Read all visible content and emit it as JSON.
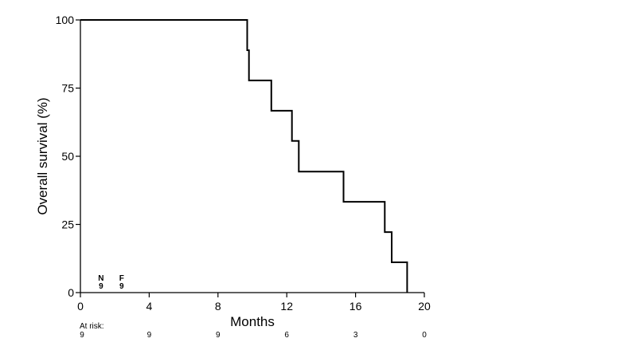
{
  "chart_data": {
    "type": "line",
    "xlabel": "Months",
    "ylabel": "Overall survival (%)",
    "xlim": [
      0,
      20
    ],
    "ylim": [
      0,
      100
    ],
    "x_ticks": [
      "0",
      "4",
      "8",
      "12",
      "16",
      "20"
    ],
    "y_ticks": [
      "0",
      "25",
      "50",
      "75",
      "100"
    ],
    "grid": false,
    "series": [
      {
        "step": true,
        "x": [
          0,
          9.7,
          9.7,
          9.8,
          9.8,
          11.1,
          11.1,
          12.3,
          12.3,
          12.7,
          12.7,
          15.3,
          15.3,
          17.7,
          17.7,
          18.1,
          18.1,
          19.0,
          19.0
        ],
        "y": [
          100,
          100,
          88.9,
          88.9,
          77.8,
          77.8,
          66.7,
          66.7,
          55.6,
          55.6,
          44.4,
          44.4,
          33.3,
          33.3,
          22.2,
          22.2,
          11.1,
          11.1,
          0
        ]
      }
    ],
    "annotations": [
      {
        "text": "N",
        "x": 1.2,
        "y": 5.5
      },
      {
        "text": "9",
        "x": 1.2,
        "y": 2.6
      },
      {
        "text": "F",
        "x": 2.4,
        "y": 5.5
      },
      {
        "text": "9",
        "x": 2.4,
        "y": 2.6
      }
    ],
    "at_risk": {
      "label": "At risk:",
      "times": [
        0,
        4,
        8,
        12,
        16,
        20
      ],
      "counts": [
        "9",
        "9",
        "9",
        "6",
        "3",
        "0"
      ]
    }
  }
}
